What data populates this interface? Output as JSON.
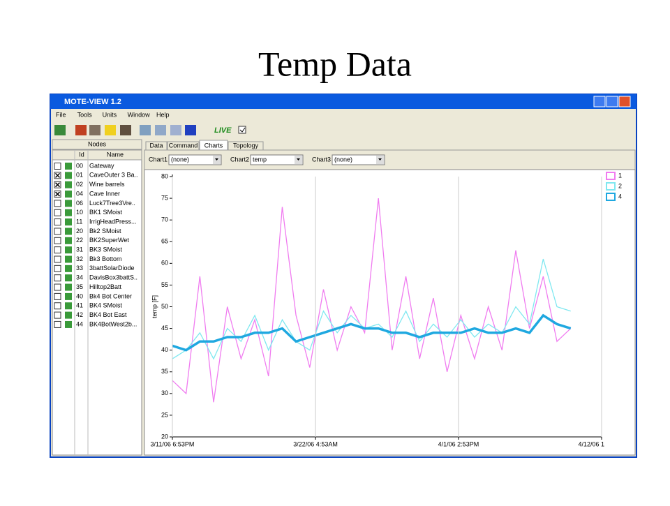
{
  "slide_title": "Temp Data",
  "window": {
    "title": "MOTE-VIEW 1.2",
    "menu": [
      "File",
      "Tools",
      "Units",
      "Window",
      "Help"
    ],
    "live_label": "LIVE",
    "live_checked": true
  },
  "nodes_panel": {
    "title": "Nodes",
    "columns": [
      "Id",
      "Name"
    ],
    "rows": [
      {
        "id": "00",
        "name": "Gateway",
        "checked": false
      },
      {
        "id": "01",
        "name": "CaveOuter 3 Ba..",
        "checked": true
      },
      {
        "id": "02",
        "name": "Wine barrels",
        "checked": true
      },
      {
        "id": "04",
        "name": "Cave Inner",
        "checked": true
      },
      {
        "id": "06",
        "name": "Luck7Tree3Vre..",
        "checked": false
      },
      {
        "id": "10",
        "name": "BK1 SMoist",
        "checked": false
      },
      {
        "id": "11",
        "name": "IrrigHeadPress...",
        "checked": false
      },
      {
        "id": "20",
        "name": "Bk2 SMoist",
        "checked": false
      },
      {
        "id": "22",
        "name": "BK2SuperWet",
        "checked": false
      },
      {
        "id": "31",
        "name": "BK3 SMoist",
        "checked": false
      },
      {
        "id": "32",
        "name": "Bk3 Bottom",
        "checked": false
      },
      {
        "id": "33",
        "name": "3battSolarDiode",
        "checked": false
      },
      {
        "id": "34",
        "name": "DavisBox3battS..",
        "checked": false
      },
      {
        "id": "35",
        "name": "Hilltop2Batt",
        "checked": false
      },
      {
        "id": "40",
        "name": "Bk4 Bot Center",
        "checked": false
      },
      {
        "id": "41",
        "name": "BK4 SMoist",
        "checked": false
      },
      {
        "id": "42",
        "name": "BK4 Bot East",
        "checked": false
      },
      {
        "id": "44",
        "name": "BK4BotWest2b...",
        "checked": false
      }
    ]
  },
  "tabs": {
    "items": [
      "Data",
      "Command",
      "Charts",
      "Topology"
    ],
    "active": 2
  },
  "chart_selectors": [
    {
      "label": "Chart1",
      "value": "(none)"
    },
    {
      "label": "Chart2",
      "value": "temp"
    },
    {
      "label": "Chart3",
      "value": "(none)"
    }
  ],
  "chart_data": {
    "type": "line",
    "y_label": "temp [F]",
    "x": [
      0,
      1,
      2,
      3,
      4,
      5,
      6,
      7,
      8,
      9,
      10,
      11,
      12,
      13,
      14,
      15,
      16,
      17,
      18,
      19,
      20,
      21,
      22,
      23,
      24,
      25,
      26,
      27,
      28,
      29
    ],
    "xlim": [
      0,
      31.25
    ],
    "xticks": [
      {
        "value": 0,
        "label": "3/11/06 6:53PM"
      },
      {
        "value": 10.42,
        "label": "3/22/06 4:53AM"
      },
      {
        "value": 20.83,
        "label": "4/1/06 2:53PM"
      },
      {
        "value": 31.25,
        "label": "4/12/06 1"
      }
    ],
    "ylim": [
      20,
      80
    ],
    "yticks": [
      20,
      25,
      30,
      35,
      40,
      45,
      50,
      55,
      60,
      65,
      70,
      75,
      80
    ],
    "grid": true,
    "series": [
      {
        "name": "1",
        "color": "#f07cf0",
        "values": [
          33,
          30,
          57,
          28,
          50,
          38,
          47,
          34,
          73,
          48,
          36,
          54,
          40,
          50,
          44,
          75,
          40,
          57,
          38,
          52,
          35,
          48,
          38,
          50,
          40,
          63,
          45,
          57,
          42,
          45
        ]
      },
      {
        "name": "2",
        "color": "#7fe8f0",
        "values": [
          38,
          40,
          44,
          38,
          45,
          42,
          48,
          40,
          47,
          42,
          40,
          49,
          44,
          48,
          45,
          46,
          43,
          49,
          42,
          46,
          43,
          47,
          43,
          46,
          44,
          50,
          46,
          61,
          50,
          49
        ]
      },
      {
        "name": "4",
        "color": "#1fa8e0",
        "values": [
          41,
          40,
          42,
          42,
          43,
          43,
          44,
          44,
          45,
          42,
          43,
          44,
          45,
          46,
          45,
          45,
          44,
          44,
          43,
          44,
          44,
          44,
          45,
          44,
          44,
          45,
          44,
          48,
          46,
          45
        ]
      }
    ]
  }
}
